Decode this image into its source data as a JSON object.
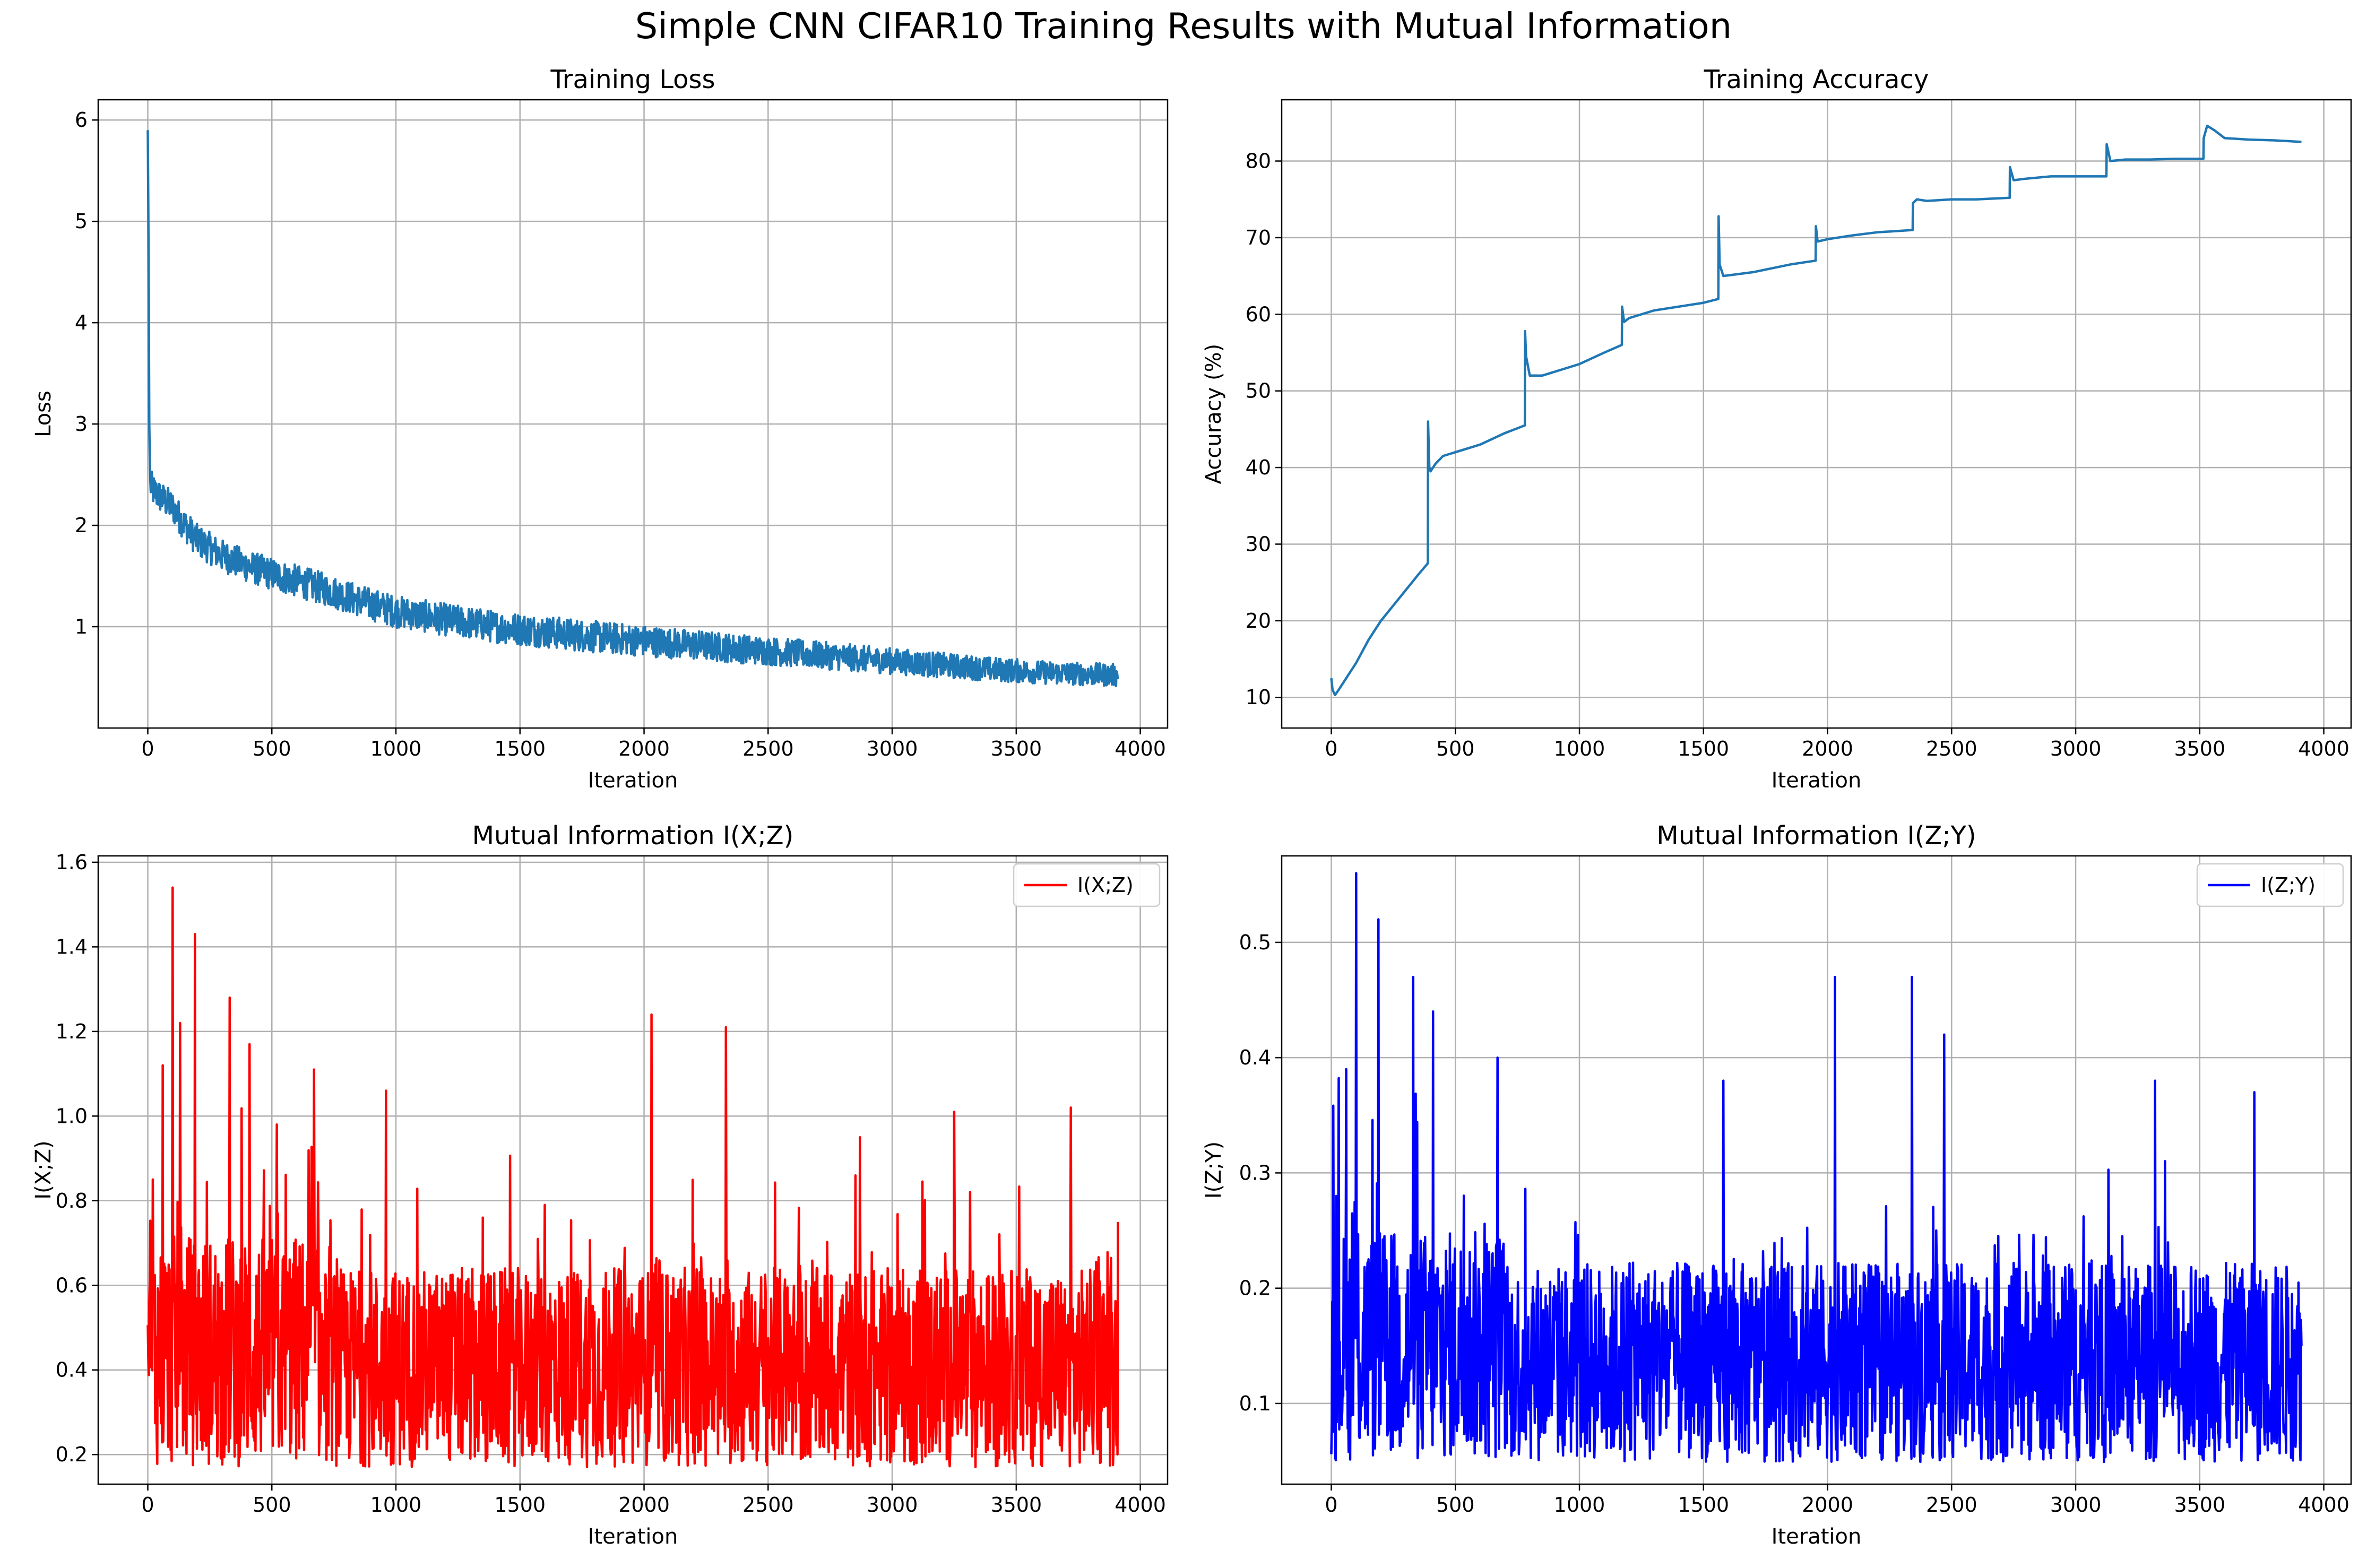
{
  "figure": {
    "suptitle": "Simple CNN CIFAR10 Training Results with Mutual Information"
  },
  "chart_data": [
    {
      "type": "line",
      "title": "Training Loss",
      "xlabel": "Iteration",
      "ylabel": "Loss",
      "xlim": [
        -200,
        4110
      ],
      "ylim": [
        0.0,
        6.2
      ],
      "xticks": [
        0,
        500,
        1000,
        1500,
        2000,
        2500,
        3000,
        3500,
        4000
      ],
      "yticks": [
        1,
        2,
        3,
        4,
        5,
        6
      ],
      "grid": true,
      "color": "#1f77b4",
      "series": [
        {
          "x": [
            0,
            3,
            6,
            10,
            20,
            50,
            100,
            150,
            200,
            300,
            400,
            500,
            600,
            700,
            800,
            900,
            1000,
            1200,
            1400,
            1600,
            1800,
            2000,
            2200,
            2400,
            2600,
            2800,
            3000,
            3200,
            3400,
            3600,
            3800,
            3910
          ],
          "values": [
            5.9,
            4.8,
            3.0,
            2.4,
            2.35,
            2.28,
            2.18,
            2.0,
            1.85,
            1.7,
            1.6,
            1.52,
            1.45,
            1.38,
            1.3,
            1.22,
            1.15,
            1.07,
            1.0,
            0.95,
            0.9,
            0.86,
            0.82,
            0.78,
            0.74,
            0.7,
            0.66,
            0.62,
            0.58,
            0.55,
            0.53,
            0.52
          ],
          "noise_amplitude": 0.16
        }
      ]
    },
    {
      "type": "line",
      "title": "Training Accuracy",
      "xlabel": "Iteration",
      "ylabel": "Accuracy (%)",
      "xlim": [
        -200,
        4110
      ],
      "ylim": [
        6,
        88
      ],
      "xticks": [
        0,
        500,
        1000,
        1500,
        2000,
        2500,
        3000,
        3500,
        4000
      ],
      "yticks": [
        10,
        20,
        30,
        40,
        50,
        60,
        70,
        80
      ],
      "grid": true,
      "color": "#1f77b4",
      "series": [
        {
          "x": [
            0,
            5,
            15,
            30,
            60,
            100,
            150,
            200,
            250,
            300,
            350,
            389,
            390,
            395,
            400,
            420,
            450,
            500,
            600,
            700,
            780,
            781,
            785,
            800,
            850,
            900,
            1000,
            1100,
            1171,
            1172,
            1180,
            1200,
            1300,
            1400,
            1500,
            1560,
            1561,
            1565,
            1580,
            1700,
            1850,
            1952,
            1953,
            1960,
            2000,
            2100,
            2200,
            2343,
            2344,
            2360,
            2400,
            2500,
            2600,
            2734,
            2735,
            2750,
            2800,
            2900,
            3000,
            3124,
            3125,
            3140,
            3200,
            3300,
            3400,
            3515,
            3516,
            3530,
            3560,
            3600,
            3700,
            3800,
            3910
          ],
          "values": [
            12.5,
            11.0,
            10.3,
            11.0,
            12.5,
            14.5,
            17.5,
            20.0,
            22.0,
            24.0,
            26.0,
            27.5,
            46.0,
            40.0,
            39.5,
            40.5,
            41.5,
            42.0,
            43.0,
            44.5,
            45.5,
            57.8,
            54.5,
            52.0,
            52.0,
            52.5,
            53.5,
            55.0,
            56.0,
            61.0,
            59.0,
            59.5,
            60.5,
            61.0,
            61.5,
            62.0,
            72.8,
            66.5,
            65.0,
            65.5,
            66.5,
            67.0,
            71.5,
            69.5,
            69.8,
            70.3,
            70.7,
            71.0,
            74.5,
            75.0,
            74.8,
            75.0,
            75.0,
            75.2,
            79.2,
            77.5,
            77.7,
            78.0,
            78.0,
            78.0,
            82.2,
            80.0,
            80.2,
            80.2,
            80.3,
            80.3,
            83.0,
            84.6,
            84.0,
            83.0,
            82.8,
            82.7,
            82.5
          ]
        }
      ]
    },
    {
      "type": "line",
      "title": "Mutual Information I(X;Z)",
      "xlabel": "Iteration",
      "ylabel": "I(X;Z)",
      "xlim": [
        -200,
        4110
      ],
      "ylim": [
        0.13,
        1.615
      ],
      "xticks": [
        0,
        500,
        1000,
        1500,
        2000,
        2500,
        3000,
        3500,
        4000
      ],
      "yticks": [
        0.2,
        0.4,
        0.6,
        0.8,
        1.0,
        1.2,
        1.4,
        1.6
      ],
      "grid": true,
      "legend": "top-right",
      "series": [
        {
          "name": "I(X;Z)",
          "color": "#ff0000",
          "x_max": 3910,
          "baseline": 0.2,
          "peaks": [
            [
              20,
              0.85
            ],
            [
              60,
              1.12
            ],
            [
              100,
              1.54
            ],
            [
              130,
              1.22
            ],
            [
              190,
              1.43
            ],
            [
              330,
              1.28
            ],
            [
              410,
              1.17
            ],
            [
              520,
              0.98
            ],
            [
              670,
              1.11
            ],
            [
              960,
              1.06
            ],
            [
              1350,
              0.76
            ],
            [
              1600,
              0.79
            ],
            [
              2030,
              1.24
            ],
            [
              2330,
              1.21
            ],
            [
              2870,
              0.95
            ],
            [
              3250,
              1.01
            ],
            [
              3720,
              1.02
            ],
            [
              3910,
              0.75
            ]
          ]
        }
      ]
    },
    {
      "type": "line",
      "title": "Mutual Information I(Z;Y)",
      "xlabel": "Iteration",
      "ylabel": "I(Z;Y)",
      "xlim": [
        -200,
        4110
      ],
      "ylim": [
        0.03,
        0.575
      ],
      "xticks": [
        0,
        500,
        1000,
        1500,
        2000,
        2500,
        3000,
        3500,
        4000
      ],
      "yticks": [
        0.1,
        0.2,
        0.3,
        0.4,
        0.5
      ],
      "grid": true,
      "legend": "top-right",
      "series": [
        {
          "name": "I(Z;Y)",
          "color": "#0000ff",
          "x_max": 3910,
          "baseline": 0.06,
          "peaks": [
            [
              20,
              0.28
            ],
            [
              60,
              0.39
            ],
            [
              100,
              0.56
            ],
            [
              190,
              0.52
            ],
            [
              330,
              0.47
            ],
            [
              410,
              0.44
            ],
            [
              670,
              0.4
            ],
            [
              1580,
              0.38
            ],
            [
              2030,
              0.47
            ],
            [
              2340,
              0.47
            ],
            [
              2470,
              0.42
            ],
            [
              3320,
              0.38
            ],
            [
              3720,
              0.37
            ],
            [
              3910,
              0.15
            ]
          ]
        }
      ]
    }
  ]
}
